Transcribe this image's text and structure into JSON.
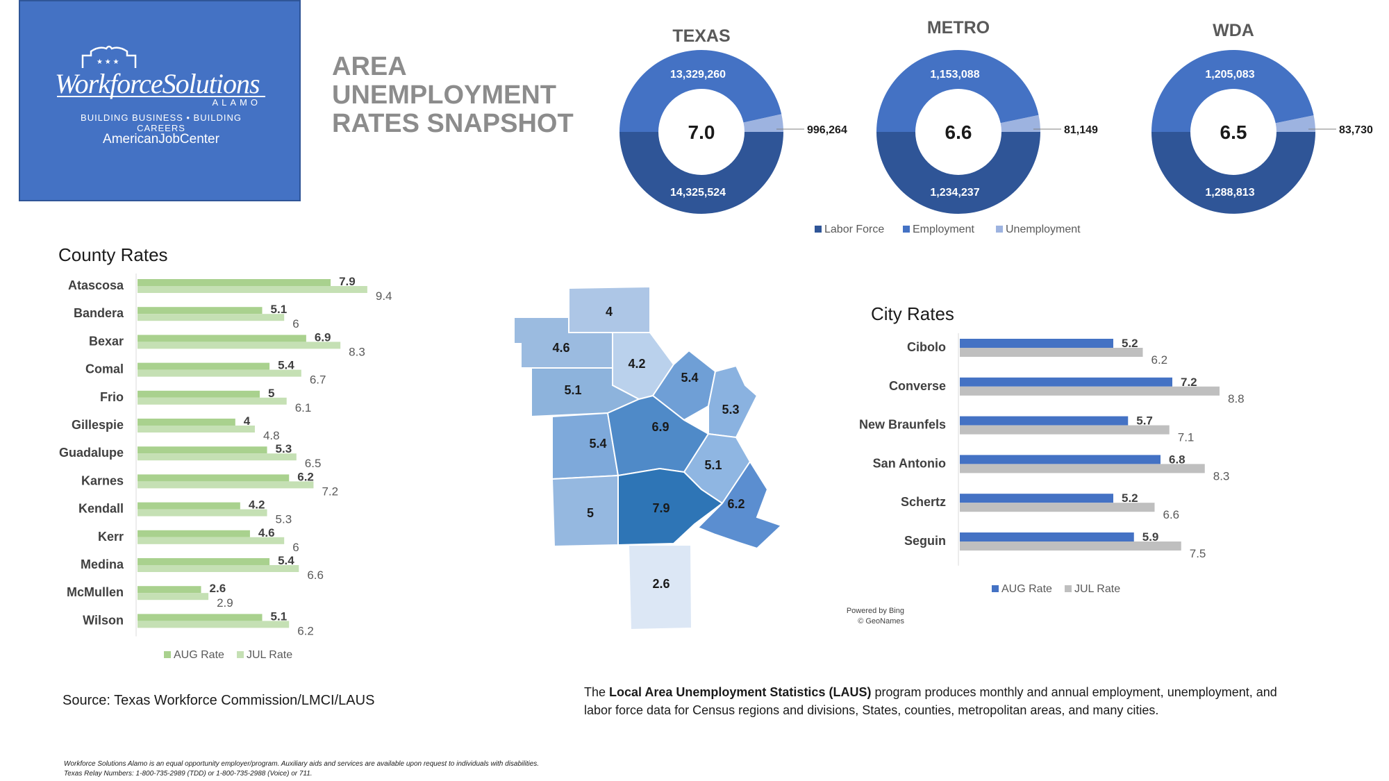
{
  "logo": {
    "name": "WorkforceSolutions",
    "sub": "ALAMO",
    "tagline": "BUILDING BUSINESS • BUILDING CAREERS",
    "ajc": "AmericanJobCenter"
  },
  "page_title": [
    "AREA",
    "UNEMPLOYMENT",
    "RATES SNAPSHOT"
  ],
  "colors": {
    "labor_force": "#2f5597",
    "employment": "#4472c4",
    "unemployment": "#9db3e0",
    "aug_green": "#a9d18e",
    "jul_green": "#c5e0b4",
    "aug_blue": "#4472c4",
    "jul_gray": "#bfbfbf"
  },
  "chart_data": [
    {
      "type": "pie",
      "subtype": "donut",
      "title": "TEXAS",
      "center_value": "7.0",
      "labor_force": "14,325,524",
      "employment": "13,329,260",
      "unemployment": "996,264"
    },
    {
      "type": "pie",
      "subtype": "donut",
      "title": "METRO",
      "center_value": "6.6",
      "labor_force": "1,234,237",
      "employment": "1,153,088",
      "unemployment": "81,149"
    },
    {
      "type": "pie",
      "subtype": "donut",
      "title": "WDA",
      "center_value": "6.5",
      "labor_force": "1,288,813",
      "employment": "1,205,083",
      "unemployment": "83,730"
    },
    {
      "type": "bar",
      "orientation": "horizontal",
      "title": "County Rates",
      "categories": [
        "Atascosa",
        "Bandera",
        "Bexar",
        "Comal",
        "Frio",
        "Gillespie",
        "Guadalupe",
        "Karnes",
        "Kendall",
        "Kerr",
        "Medina",
        "McMullen",
        "Wilson"
      ],
      "series": [
        {
          "name": "AUG Rate",
          "values": [
            7.9,
            5.1,
            6.9,
            5.4,
            5,
            4,
            5.3,
            6.2,
            4.2,
            4.6,
            5.4,
            2.6,
            5.1
          ]
        },
        {
          "name": "JUL Rate",
          "values": [
            9.4,
            6,
            8.3,
            6.7,
            6.1,
            4.8,
            6.5,
            7.2,
            5.3,
            6,
            6.6,
            2.9,
            6.2
          ]
        }
      ],
      "xlim": [
        0,
        9.4
      ],
      "legend_position": "bottom"
    },
    {
      "type": "bar",
      "orientation": "horizontal",
      "title": "City Rates",
      "categories": [
        "Cibolo",
        "Converse",
        "New Braunfels",
        "San Antonio",
        "Schertz",
        "Seguin"
      ],
      "series": [
        {
          "name": "AUG Rate",
          "values": [
            5.2,
            7.2,
            5.7,
            6.8,
            5.2,
            5.9
          ]
        },
        {
          "name": "JUL Rate",
          "values": [
            6.2,
            8.8,
            7.1,
            8.3,
            6.6,
            7.5
          ]
        }
      ],
      "xlim": [
        0,
        8.8
      ],
      "legend_position": "bottom"
    }
  ],
  "donut_legend": [
    "Labor Force",
    "Employment",
    "Unemployment"
  ],
  "map": {
    "county_values": [
      "4",
      "4.6",
      "4.2",
      "5.1",
      "5.4",
      "5.3",
      "5.4",
      "6.9",
      "5.1",
      "5",
      "7.9",
      "6.2",
      "2.6"
    ],
    "credit": [
      "Powered by Bing",
      "© GeoNames"
    ]
  },
  "source": "Source: Texas Workforce Commission/LMCI/LAUS",
  "laus": {
    "pre": "The ",
    "bold": "Local Area Unemployment Statistics (LAUS)",
    "post": " program produces monthly and annual employment, unemployment, and labor force data for Census regions and divisions, States, counties, metropolitan areas, and many cities."
  },
  "disclaimer": [
    "Workforce Solutions Alamo is an equal opportunity employer/program. Auxiliary aids and services are available upon request to individuals with disabilities.",
    "Texas Relay Numbers: 1-800-735-2989 (TDD) or 1-800-735-2988 (Voice) or 711."
  ]
}
